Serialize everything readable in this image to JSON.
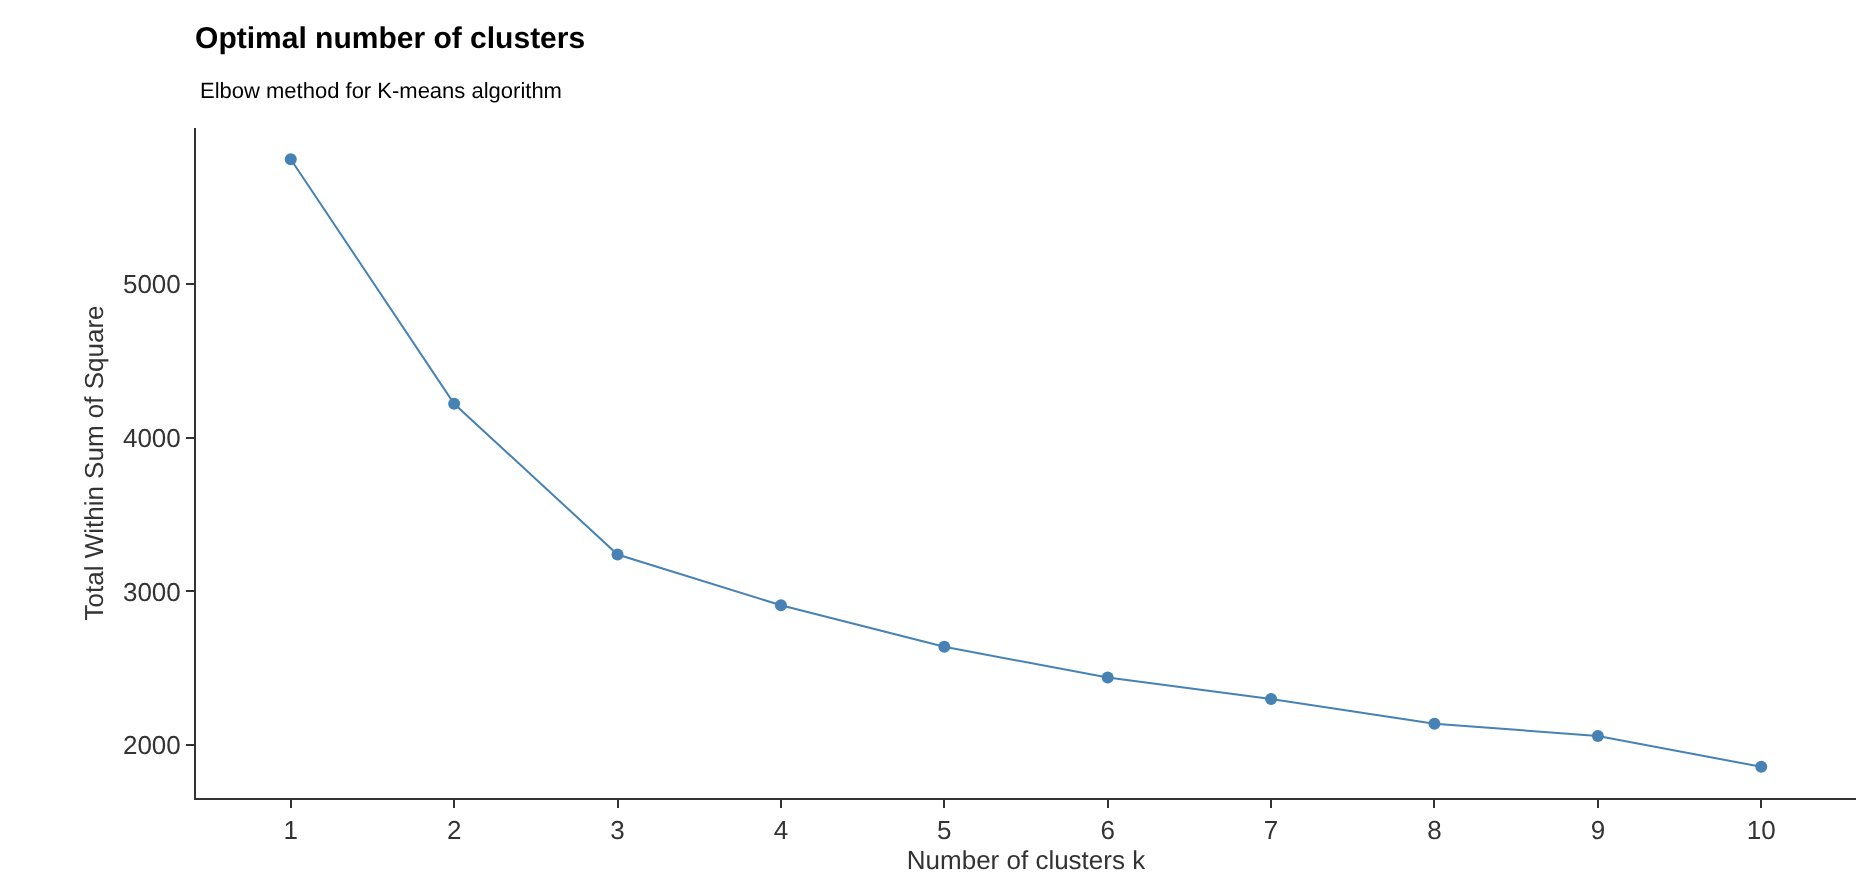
{
  "chart_data": {
    "type": "line",
    "title": "Optimal number of clusters",
    "subtitle": "Elbow method for K-means algorithm",
    "xlabel": "Number of clusters k",
    "ylabel": "Total Within Sum of Square",
    "categories": [
      "1",
      "2",
      "3",
      "4",
      "5",
      "6",
      "7",
      "8",
      "9",
      "10"
    ],
    "series": [
      {
        "color": "#4682b4",
        "values": [
          5810,
          4220,
          3240,
          2910,
          2640,
          2440,
          2300,
          2140,
          2060,
          1860
        ]
      }
    ],
    "ylim": [
      1657,
      6013
    ],
    "yticks": [
      2000,
      3000,
      4000,
      5000
    ],
    "marker": "circle",
    "line_style": "solid"
  }
}
